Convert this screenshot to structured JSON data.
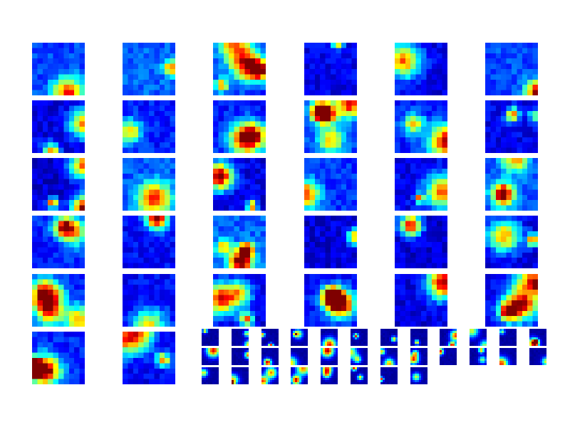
{
  "figure": {
    "background": "#ffffff",
    "colormap": "jet",
    "colormap_stops": [
      "#00007f",
      "#0000ff",
      "#007fff",
      "#00ffff",
      "#7fff7f",
      "#ffff00",
      "#ff7f00",
      "#ff0000",
      "#7f0000"
    ],
    "large_grid": {
      "rows": 6,
      "columns": 6,
      "tile_count": 32,
      "heatmap_cells_per_side": 10
    },
    "small_grid": {
      "rows": 3,
      "columns": 12,
      "tile_count": 32,
      "heatmap_cells_per_side": 8
    }
  }
}
